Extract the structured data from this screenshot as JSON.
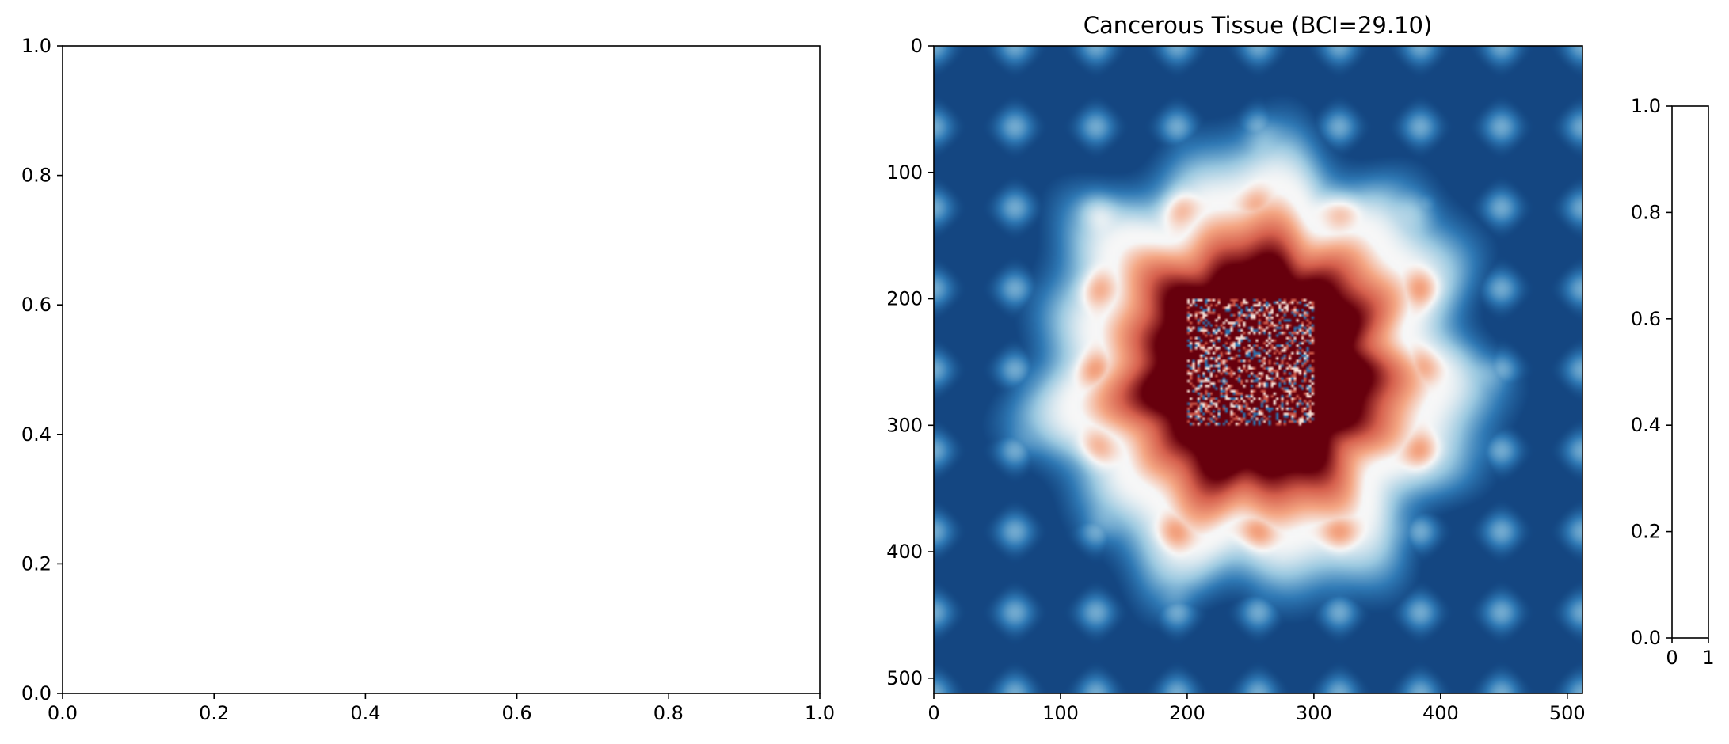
{
  "figure": {
    "background": "#ffffff",
    "axis_color": "#000000"
  },
  "chart_data": [
    {
      "type": "scatter",
      "panel": "left-empty-axes",
      "title": "",
      "xlabel": "",
      "ylabel": "",
      "xlim": [
        0,
        1
      ],
      "ylim": [
        0,
        1
      ],
      "grid": false,
      "series": [],
      "xticks": [
        0.0,
        0.2,
        0.4,
        0.6,
        0.8,
        1.0
      ],
      "yticks": [
        0.0,
        0.2,
        0.4,
        0.6,
        0.8,
        1.0
      ],
      "xtick_labels": [
        "0.0",
        "0.2",
        "0.4",
        "0.6",
        "0.8",
        "1.0"
      ],
      "ytick_labels": [
        "0.0",
        "0.2",
        "0.4",
        "0.6",
        "0.8",
        "1.0"
      ]
    },
    {
      "type": "heatmap",
      "panel": "tissue-image",
      "title": "Cancerous Tissue (BCI=29.10)",
      "colormap": "RdBu_r",
      "colormap_stops": [
        "#08306b",
        "#2f79b5",
        "#9ac8e0",
        "#f7f7f7",
        "#f4a582",
        "#d6604d",
        "#67000d"
      ],
      "xlim": [
        0,
        512
      ],
      "ylim": [
        512,
        0
      ],
      "xticks": [
        0,
        100,
        200,
        300,
        400,
        500
      ],
      "yticks": [
        0,
        100,
        200,
        300,
        400,
        500
      ],
      "xtick_labels": [
        "0",
        "100",
        "200",
        "300",
        "400",
        "500"
      ],
      "ytick_labels": [
        "0",
        "100",
        "200",
        "300",
        "400",
        "500"
      ],
      "tumor_center": [
        256,
        256
      ],
      "tumor_core_radius": 85,
      "tumor_halo_radius": 135,
      "noise_region": {
        "x": [
          200,
          300
        ],
        "y": [
          200,
          300
        ]
      },
      "cell_spacing": 64
    },
    {
      "type": "bar",
      "panel": "colorbar-axes",
      "title": "",
      "xlim": [
        0,
        1
      ],
      "ylim": [
        0,
        1
      ],
      "xticks": [
        0,
        1
      ],
      "yticks": [
        0.0,
        0.2,
        0.4,
        0.6,
        0.8,
        1.0
      ],
      "xtick_labels": [
        "0",
        "1"
      ],
      "ytick_labels": [
        "0.0",
        "0.2",
        "0.4",
        "0.6",
        "0.8",
        "1.0"
      ],
      "values": []
    }
  ]
}
